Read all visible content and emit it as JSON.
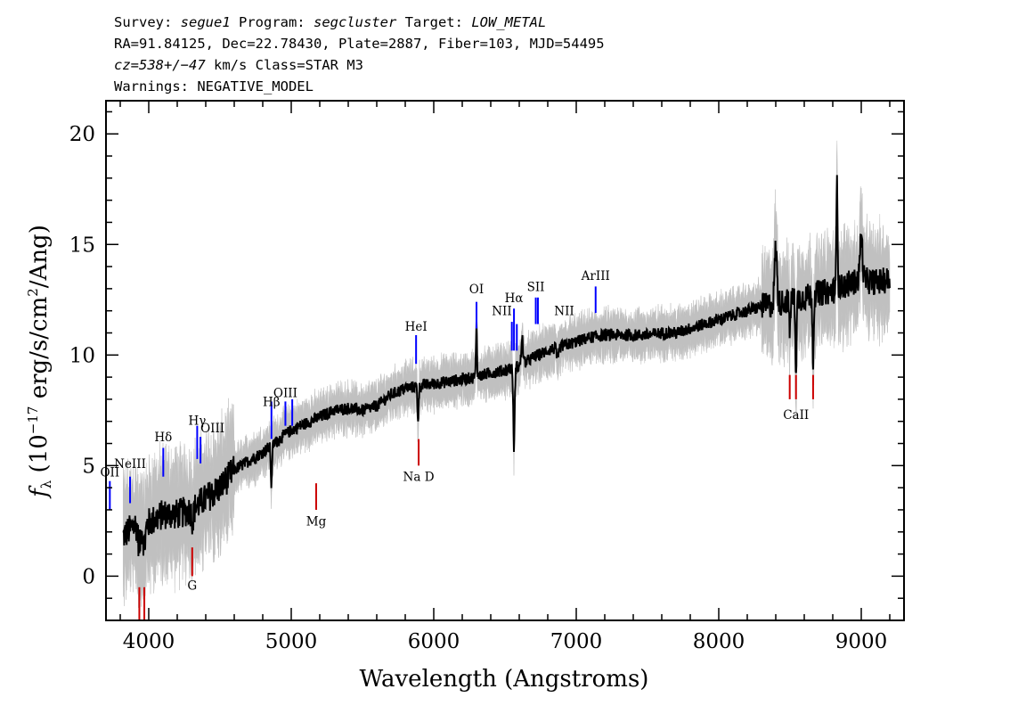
{
  "header": {
    "line1": [
      {
        "text": "Survey: ",
        "italic": false
      },
      {
        "text": "segue1",
        "italic": true
      },
      {
        "text": " Program: ",
        "italic": false
      },
      {
        "text": "segcluster",
        "italic": true
      },
      {
        "text": " Target: ",
        "italic": false
      },
      {
        "text": "LOW_METAL",
        "italic": true
      }
    ],
    "line2": "RA=91.84125, Dec=22.78430, Plate=2887, Fiber=103, MJD=54495",
    "line3": [
      {
        "text": "cz=538+/−47",
        "italic": true
      },
      {
        "text": " km/s Class=STAR M3",
        "italic": false
      }
    ],
    "line4": "Warnings: NEGATIVE_MODEL"
  },
  "chart_data": {
    "type": "line",
    "xlabel": "Wavelength (Angstroms)",
    "ylabel": "f_λ (10^-17 erg/s/cm^2/Ang)",
    "ylabel_parts": {
      "f": "f",
      "sub": "λ",
      "pre": " (10",
      "exp1": "−17",
      "mid": " erg/s/cm",
      "exp2": "2",
      "post": "/Ang)"
    },
    "xlim": [
      3700,
      9300
    ],
    "ylim": [
      -2,
      21.5
    ],
    "xticks": [
      4000,
      5000,
      6000,
      7000,
      8000,
      9000
    ],
    "yticks": [
      0,
      5,
      10,
      15,
      20
    ],
    "x_minor_step": 200,
    "y_minor_step": 1,
    "colors": {
      "flux": "#000000",
      "error_band": "#c0c0c0",
      "emission": "#0000ff",
      "absorption": "#cc0000"
    },
    "flux_anchors": [
      [
        3820,
        1.8
      ],
      [
        3900,
        2.3
      ],
      [
        4000,
        2.4
      ],
      [
        4100,
        2.8
      ],
      [
        4200,
        2.8
      ],
      [
        4300,
        3.0
      ],
      [
        4400,
        3.5
      ],
      [
        4500,
        4.0
      ],
      [
        4600,
        4.8
      ],
      [
        4700,
        5.2
      ],
      [
        4800,
        5.6
      ],
      [
        4900,
        6.1
      ],
      [
        5000,
        6.6
      ],
      [
        5100,
        6.9
      ],
      [
        5200,
        7.2
      ],
      [
        5300,
        7.5
      ],
      [
        5400,
        7.6
      ],
      [
        5500,
        7.5
      ],
      [
        5600,
        7.7
      ],
      [
        5700,
        8.2
      ],
      [
        5800,
        8.5
      ],
      [
        5900,
        8.6
      ],
      [
        6000,
        8.7
      ],
      [
        6100,
        8.8
      ],
      [
        6200,
        8.9
      ],
      [
        6300,
        9.0
      ],
      [
        6400,
        9.2
      ],
      [
        6500,
        9.3
      ],
      [
        6600,
        9.5
      ],
      [
        6700,
        9.9
      ],
      [
        6800,
        10.2
      ],
      [
        6900,
        10.4
      ],
      [
        7000,
        10.6
      ],
      [
        7100,
        10.8
      ],
      [
        7200,
        10.9
      ],
      [
        7300,
        10.9
      ],
      [
        7400,
        10.9
      ],
      [
        7500,
        10.9
      ],
      [
        7600,
        11.0
      ],
      [
        7700,
        11.0
      ],
      [
        7800,
        11.2
      ],
      [
        7900,
        11.4
      ],
      [
        8000,
        11.6
      ],
      [
        8100,
        11.8
      ],
      [
        8200,
        12.0
      ],
      [
        8300,
        12.2
      ],
      [
        8400,
        12.3
      ],
      [
        8500,
        12.5
      ],
      [
        8600,
        12.6
      ],
      [
        8700,
        12.8
      ],
      [
        8800,
        12.9
      ],
      [
        8900,
        13.2
      ],
      [
        9000,
        13.4
      ],
      [
        9100,
        13.3
      ],
      [
        9200,
        13.4
      ]
    ],
    "flux_features": [
      [
        3934,
        -1.0,
        12
      ],
      [
        3969,
        -1.0,
        12
      ],
      [
        4308,
        -0.5,
        10
      ],
      [
        4861,
        -1.8,
        6
      ],
      [
        5890,
        -1.5,
        6
      ],
      [
        6300,
        2.5,
        5
      ],
      [
        6563,
        -3.6,
        7
      ],
      [
        6620,
        1.2,
        8
      ],
      [
        6870,
        -0.6,
        10
      ],
      [
        8498,
        -1.5,
        6
      ],
      [
        8542,
        -3.2,
        6
      ],
      [
        8662,
        -3.0,
        6
      ],
      [
        8830,
        5.0,
        6
      ],
      [
        8400,
        2.5,
        12
      ],
      [
        9000,
        2.0,
        12
      ]
    ],
    "spectral_lines": [
      {
        "label": "OII",
        "x": 3727,
        "y0": 3.0,
        "y1": 4.3,
        "type": "emission",
        "label_y": 4.5,
        "anchor": "middle"
      },
      {
        "label": "NeIII",
        "x": 3869,
        "y0": 3.3,
        "y1": 4.5,
        "type": "emission",
        "label_y": 4.9,
        "anchor": "middle"
      },
      {
        "label": "Hδ",
        "x": 4102,
        "y0": 4.5,
        "y1": 5.8,
        "type": "emission",
        "label_y": 6.1,
        "anchor": "middle"
      },
      {
        "label": "Hγ",
        "x": 4340,
        "y0": 5.3,
        "y1": 6.8,
        "type": "emission",
        "label_y": 6.85,
        "anchor": "middle"
      },
      {
        "label": "OIII",
        "x": 4363,
        "y0": 5.1,
        "y1": 6.3,
        "type": "emission",
        "label_y": 6.5,
        "anchor": "start"
      },
      {
        "label": "Hβ",
        "x": 4861,
        "y0": 6.2,
        "y1": 7.9,
        "type": "emission",
        "label_y": 7.7,
        "anchor": "middle"
      },
      {
        "label": "OIII",
        "x": 4959,
        "y0": 6.8,
        "y1": 7.9,
        "type": "emission",
        "label_y": 8.1,
        "anchor": "middle"
      },
      {
        "label": "",
        "x": 5007,
        "y0": 6.8,
        "y1": 8.0,
        "type": "emission"
      },
      {
        "label": "HeI",
        "x": 5876,
        "y0": 9.6,
        "y1": 10.9,
        "type": "emission",
        "label_y": 11.1,
        "anchor": "middle"
      },
      {
        "label": "OI",
        "x": 6300,
        "y0": 11.2,
        "y1": 12.4,
        "type": "emission",
        "label_y": 12.8,
        "anchor": "middle"
      },
      {
        "label": "NII",
        "x": 6548,
        "y0": 10.2,
        "y1": 11.5,
        "type": "emission",
        "label_y": 11.8,
        "anchor": "end"
      },
      {
        "label": "Hα",
        "x": 6563,
        "y0": 10.2,
        "y1": 12.1,
        "type": "emission",
        "label_y": 12.4,
        "anchor": "middle"
      },
      {
        "label": "",
        "x": 6583,
        "y0": 10.2,
        "y1": 11.4,
        "type": "emission"
      },
      {
        "label": "NII",
        "x": 6583,
        "y0": 10.2,
        "y1": 10.2,
        "type": "emission",
        "label_y": 11.8,
        "anchor": "start",
        "dx": 42
      },
      {
        "label": "SII",
        "x": 6716,
        "y0": 11.4,
        "y1": 12.6,
        "type": "emission",
        "label_y": 12.9,
        "anchor": "middle"
      },
      {
        "label": "",
        "x": 6731,
        "y0": 11.4,
        "y1": 12.6,
        "type": "emission"
      },
      {
        "label": "ArIII",
        "x": 7136,
        "y0": 11.9,
        "y1": 13.1,
        "type": "emission",
        "label_y": 13.4,
        "anchor": "middle"
      },
      {
        "label": "",
        "x": 3934,
        "y0": -2.0,
        "y1": -0.5,
        "type": "absorption"
      },
      {
        "label": "",
        "x": 3969,
        "y0": -2.0,
        "y1": -0.5,
        "type": "absorption"
      },
      {
        "label": "G",
        "x": 4305,
        "y0": 0.0,
        "y1": 1.3,
        "type": "absorption",
        "label_y": -0.6,
        "anchor": "middle"
      },
      {
        "label": "Mg",
        "x": 5175,
        "y0": 3.0,
        "y1": 4.2,
        "type": "absorption",
        "label_y": 2.3,
        "anchor": "middle"
      },
      {
        "label": "Na D",
        "x": 5894,
        "y0": 5.0,
        "y1": 6.2,
        "type": "absorption",
        "label_y": 4.3,
        "anchor": "middle"
      },
      {
        "label": "",
        "x": 8498,
        "y0": 8.0,
        "y1": 9.1,
        "type": "absorption"
      },
      {
        "label": "CaII",
        "x": 8542,
        "y0": 8.0,
        "y1": 9.1,
        "type": "absorption",
        "label_y": 7.1,
        "anchor": "middle"
      },
      {
        "label": "",
        "x": 8662,
        "y0": 8.0,
        "y1": 9.1,
        "type": "absorption"
      }
    ]
  }
}
